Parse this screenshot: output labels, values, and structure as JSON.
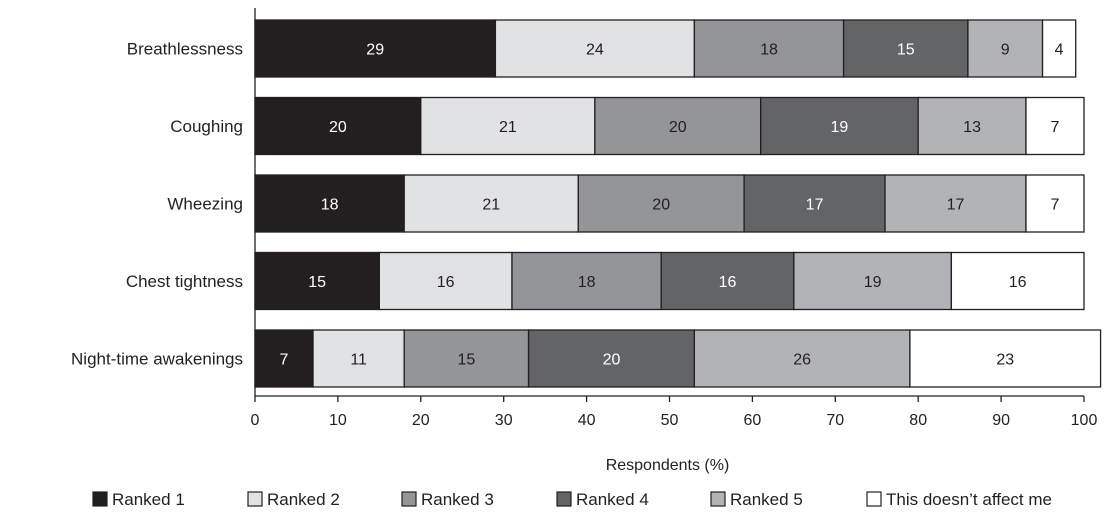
{
  "chart_data": {
    "type": "bar",
    "orientation": "horizontal",
    "stacked": true,
    "categories": [
      "Breathlessness",
      "Coughing",
      "Wheezing",
      "Chest tightness",
      "Night-time awakenings"
    ],
    "series": [
      {
        "name": "Ranked 1",
        "color": "#231f20",
        "label_color": "#ffffff",
        "values": [
          29,
          20,
          18,
          15,
          7
        ]
      },
      {
        "name": "Ranked 2",
        "color": "#e1e2e4",
        "label_color": "#231f20",
        "values": [
          24,
          21,
          21,
          16,
          11
        ]
      },
      {
        "name": "Ranked 3",
        "color": "#939598",
        "label_color": "#231f20",
        "values": [
          18,
          20,
          20,
          18,
          15
        ]
      },
      {
        "name": "Ranked 4",
        "color": "#636466",
        "label_color": "#ffffff",
        "values": [
          15,
          19,
          17,
          16,
          20
        ]
      },
      {
        "name": "Ranked 5",
        "color": "#b1b3b6",
        "label_color": "#231f20",
        "values": [
          9,
          13,
          17,
          19,
          26
        ]
      },
      {
        "name": "This doesn’t affect me",
        "color": "#ffffff",
        "label_color": "#231f20",
        "values": [
          4,
          7,
          7,
          16,
          23
        ]
      }
    ],
    "xlabel": "Respondents (%)",
    "ylabel": "",
    "xlim": [
      0,
      100
    ],
    "xticks": [
      "0",
      "10",
      "20",
      "30",
      "40",
      "50",
      "60",
      "70",
      "80",
      "90",
      "100"
    ],
    "grid": false,
    "legend_position": "bottom"
  }
}
